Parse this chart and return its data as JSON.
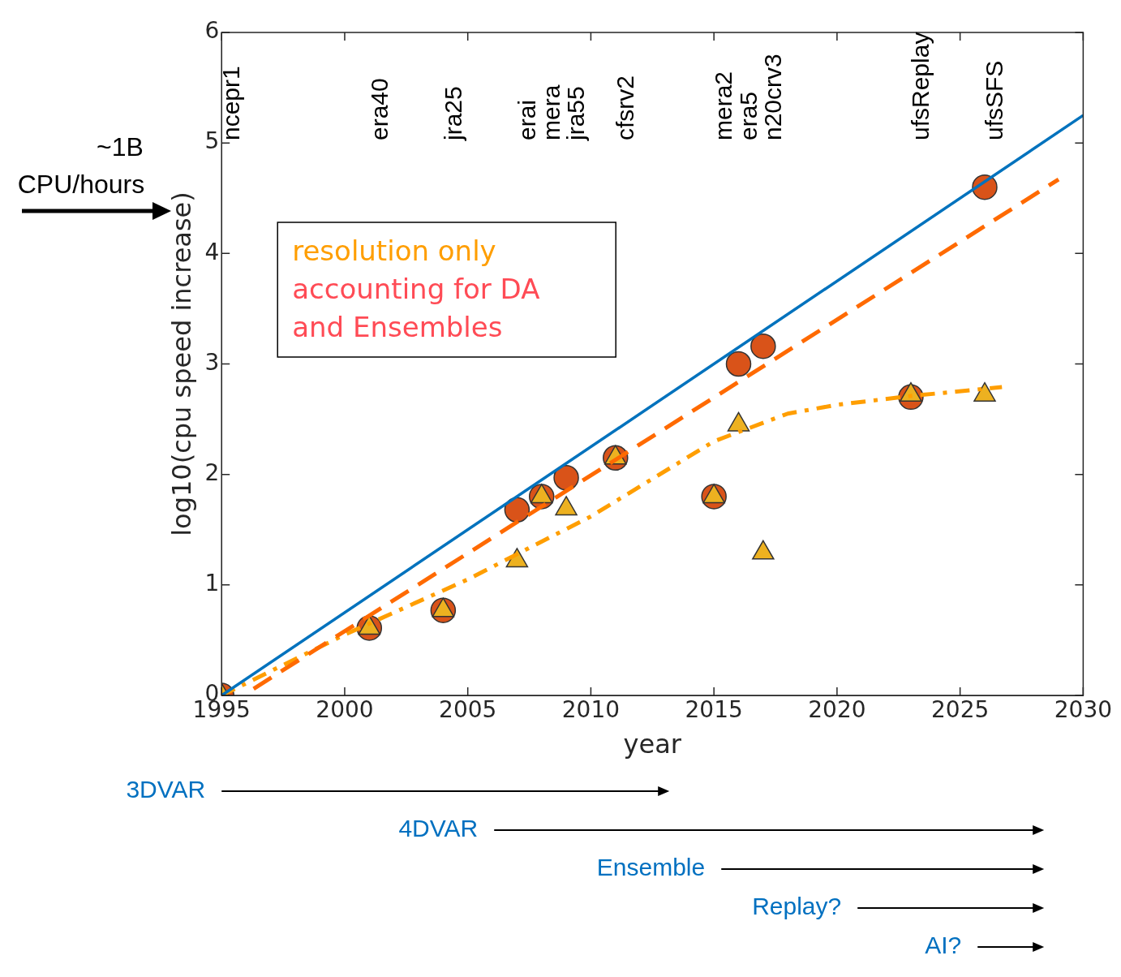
{
  "chart_data": {
    "type": "scatter",
    "xlabel": "year",
    "ylabel": "log10(cpu speed increase)",
    "xlim": [
      1995,
      2030
    ],
    "xticks": [
      1995,
      2000,
      2005,
      2010,
      2015,
      2020,
      2025,
      2030
    ],
    "ylim": [
      0,
      6
    ],
    "yticks": [
      0,
      1,
      2,
      3,
      4,
      5,
      6
    ],
    "grid": false,
    "legend": false,
    "series": [
      {
        "type": "line",
        "color": "#0072bd",
        "line_style": "solid",
        "marker": "none",
        "x": [
          1995,
          2030
        ],
        "values": [
          0,
          5.25
        ]
      },
      {
        "type": "line",
        "color": "#ff6a00",
        "line_style": "dashed",
        "marker": "none",
        "x": [
          1996.3,
          2029
        ],
        "values": [
          0.06,
          4.67
        ]
      },
      {
        "type": "line",
        "color": "#ff9e00",
        "line_style": "dashdot",
        "marker": "none",
        "x": [
          1995,
          2000,
          2005,
          2010,
          2015,
          2018,
          2020,
          2023,
          2026.7
        ],
        "values": [
          0,
          0.55,
          1.05,
          1.62,
          2.3,
          2.55,
          2.63,
          2.71,
          2.79
        ]
      },
      {
        "type": "scatter",
        "color": "#d95319",
        "marker": "circle",
        "x": [
          1995,
          2001,
          2004,
          2007,
          2008,
          2009,
          2011,
          2015,
          2016,
          2017,
          2023,
          2026
        ],
        "values": [
          0,
          0.61,
          0.77,
          1.68,
          1.8,
          1.97,
          2.15,
          1.8,
          3.0,
          3.16,
          2.7,
          4.6
        ]
      },
      {
        "type": "scatter",
        "color": "#edb120",
        "marker": "triangle",
        "x": [
          1995,
          2001,
          2004,
          2007,
          2008,
          2009,
          2011,
          2015,
          2016,
          2017,
          2023,
          2026
        ],
        "values": [
          0,
          0.61,
          0.77,
          1.22,
          1.8,
          1.69,
          2.15,
          1.8,
          2.45,
          1.29,
          2.72,
          2.72
        ]
      }
    ],
    "annotations": [
      "3DVAR",
      "4DVAR",
      "Ensemble",
      "Replay?",
      "AI?",
      "resolution only",
      "accounting for DA",
      "and Ensembles",
      "~1B",
      "CPU/hours",
      "ncepr1",
      "era40",
      "jra25",
      "erai",
      "mera",
      "jra55",
      "cfsrv2",
      "mera2",
      "era5",
      "n20crv3",
      "ufsReplay",
      "ufsSFS"
    ]
  }
}
